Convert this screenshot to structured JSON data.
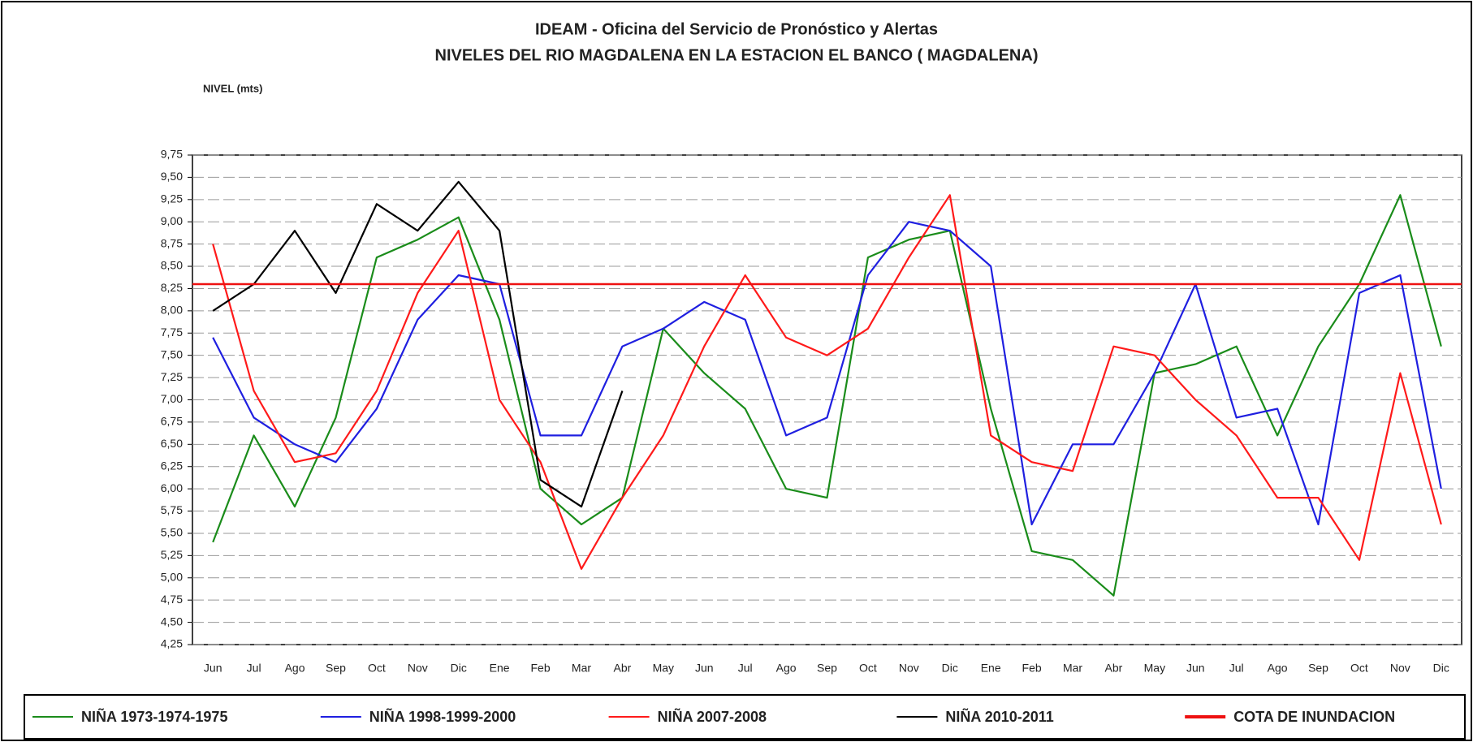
{
  "chart_data": {
    "type": "line",
    "title": "IDEAM - Oficina del Servicio de Pronóstico y Alertas",
    "subtitle": "NIVELES DEL RIO MAGDALENA EN LA ESTACION EL BANCO ( MAGDALENA)",
    "y_label": "NIVEL (mts)",
    "categories": [
      "Jun",
      "Jul",
      "Ago",
      "Sep",
      "Oct",
      "Nov",
      "Dic",
      "Ene",
      "Feb",
      "Mar",
      "Abr",
      "May",
      "Jun",
      "Jul",
      "Ago",
      "Sep",
      "Oct",
      "Nov",
      "Dic",
      "Ene",
      "Feb",
      "Mar",
      "Abr",
      "May",
      "Jun",
      "Jul",
      "Ago",
      "Sep",
      "Oct",
      "Nov",
      "Dic"
    ],
    "series": [
      {
        "name": "NIÑA 1973-1974-1975",
        "color": "#1a8c1a",
        "values": [
          5.4,
          6.6,
          5.8,
          6.8,
          8.6,
          8.8,
          9.05,
          7.9,
          6.0,
          5.6,
          5.9,
          7.8,
          7.3,
          6.9,
          6.0,
          5.9,
          8.6,
          8.8,
          8.9,
          6.9,
          5.3,
          5.2,
          4.8,
          7.3,
          7.4,
          7.6,
          6.6,
          7.6,
          8.3,
          9.3,
          7.6
        ]
      },
      {
        "name": "NIÑA 1998-1999-2000",
        "color": "#1f1fe0",
        "values": [
          7.7,
          6.8,
          6.5,
          6.3,
          6.9,
          7.9,
          8.4,
          8.3,
          6.6,
          6.6,
          7.6,
          7.8,
          8.1,
          7.9,
          6.6,
          6.8,
          8.4,
          9.0,
          8.9,
          8.5,
          5.6,
          6.5,
          6.5,
          7.3,
          8.3,
          6.8,
          6.9,
          5.6,
          8.2,
          8.4,
          6.0
        ]
      },
      {
        "name": "NIÑA 2007-2008",
        "color": "#ff1a1a",
        "values": [
          8.75,
          7.1,
          6.3,
          6.4,
          7.1,
          8.2,
          8.9,
          7.0,
          6.3,
          5.1,
          5.9,
          6.6,
          7.6,
          8.4,
          7.7,
          7.5,
          7.8,
          8.6,
          9.3,
          6.6,
          6.3,
          6.2,
          7.6,
          7.5,
          7.0,
          6.6,
          5.9,
          5.9,
          5.2,
          7.3,
          5.6
        ]
      },
      {
        "name": "NIÑA 2010-2011",
        "color": "#000000",
        "values": [
          8.0,
          8.3,
          8.9,
          8.2,
          9.2,
          8.9,
          9.45,
          8.9,
          6.1,
          5.8,
          7.1,
          null,
          null,
          null,
          null,
          null,
          null,
          null,
          null,
          null,
          null,
          null,
          null,
          null,
          null,
          null,
          null,
          null,
          null,
          null,
          null
        ]
      }
    ],
    "reference_line": {
      "name": "COTA DE INUNDACION",
      "value": 8.3,
      "color": "#ee1111"
    },
    "ylim": [
      4.25,
      9.75
    ],
    "yticks": [
      {
        "value": 4.25,
        "label": "4,25"
      },
      {
        "value": 4.5,
        "label": "4,50"
      },
      {
        "value": 4.75,
        "label": "4,75"
      },
      {
        "value": 5,
        "label": "5,00"
      },
      {
        "value": 5.25,
        "label": "5,25"
      },
      {
        "value": 5.5,
        "label": "5,50"
      },
      {
        "value": 5.75,
        "label": "5,75"
      },
      {
        "value": 6,
        "label": "6,00"
      },
      {
        "value": 6.25,
        "label": "6,25"
      },
      {
        "value": 6.5,
        "label": "6,50"
      },
      {
        "value": 6.75,
        "label": "6,75"
      },
      {
        "value": 7,
        "label": "7,00"
      },
      {
        "value": 7.25,
        "label": "7,25"
      },
      {
        "value": 7.5,
        "label": "7,50"
      },
      {
        "value": 7.75,
        "label": "7,75"
      },
      {
        "value": 8,
        "label": "8,00"
      },
      {
        "value": 8.25,
        "label": "8,25"
      },
      {
        "value": 8.5,
        "label": "8,50"
      },
      {
        "value": 8.75,
        "label": "8,75"
      },
      {
        "value": 9,
        "label": "9,00"
      },
      {
        "value": 9.25,
        "label": "9,25"
      },
      {
        "value": 9.5,
        "label": "9,50"
      },
      {
        "value": 9.75,
        "label": "9,75"
      }
    ],
    "grid": true
  }
}
